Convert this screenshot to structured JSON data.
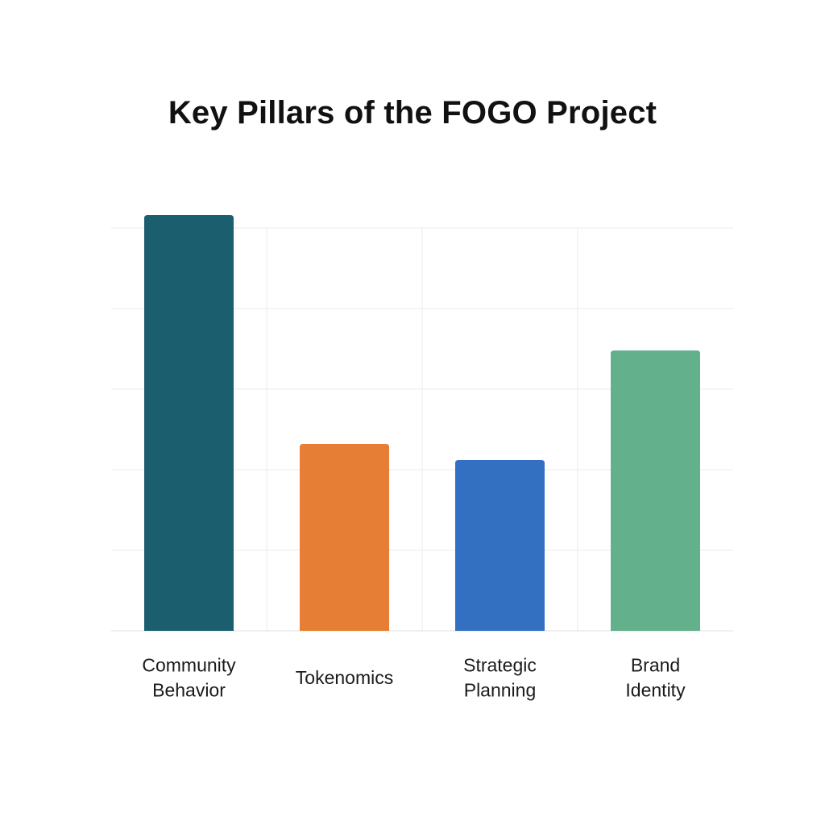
{
  "chart_data": {
    "type": "bar",
    "title": "Key Pillars of the FOGO Project",
    "xlabel": "",
    "ylabel": "",
    "categories": [
      [
        "Community",
        "Behavior"
      ],
      [
        "Tokenomics"
      ],
      [
        "Strategic",
        "Planning"
      ],
      [
        "Brand",
        "Identity"
      ]
    ],
    "values": [
      5.16,
      2.32,
      2.12,
      3.48
    ],
    "colors": [
      "#1b5e6e",
      "#e67e35",
      "#3470c2",
      "#62b08c"
    ],
    "ylim": [
      0,
      5
    ],
    "grid": true,
    "legend": "none"
  }
}
